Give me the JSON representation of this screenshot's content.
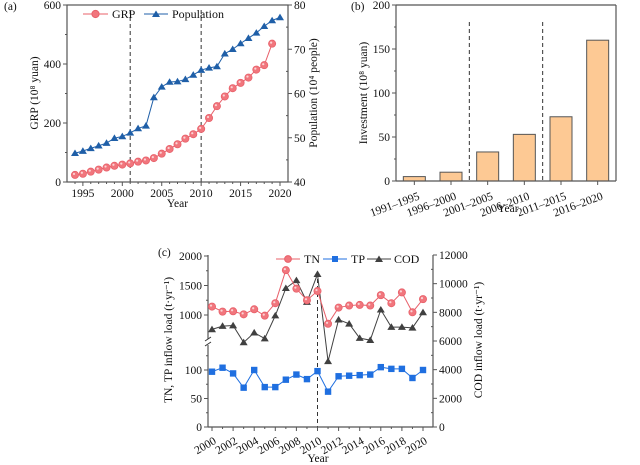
{
  "chart_data": [
    {
      "panel": "(a)",
      "type": "line",
      "xlabel": "Year",
      "ylabel": "GRP (10⁸ yuan)",
      "y2label": "Population (10⁴ people)",
      "xlim": [
        1993.2,
        2021
      ],
      "ylim": [
        0,
        600
      ],
      "y2lim": [
        40,
        80
      ],
      "xticks": [
        1995,
        2000,
        2005,
        2010,
        2015,
        2020
      ],
      "yticks": [
        0,
        200,
        400,
        600
      ],
      "y2ticks": [
        40,
        50,
        60,
        70,
        80
      ],
      "vlines": [
        2001,
        2010
      ],
      "legend": "top",
      "series": [
        {
          "name": "GRP",
          "axis": "left",
          "color": "#e8606a",
          "marker": "circle",
          "x": [
            1994,
            1995,
            1996,
            1997,
            1998,
            1999,
            2000,
            2001,
            2002,
            2003,
            2004,
            2005,
            2006,
            2007,
            2008,
            2009,
            2010,
            2011,
            2012,
            2013,
            2014,
            2015,
            2016,
            2017,
            2018,
            2019
          ],
          "values": [
            24,
            28,
            35,
            42,
            49,
            55,
            59,
            63,
            69,
            73,
            81,
            96,
            112,
            128,
            147,
            162,
            180,
            217,
            257,
            290,
            318,
            336,
            354,
            381,
            396,
            469
          ]
        },
        {
          "name": "Population",
          "axis": "right",
          "color": "#1f5fa8",
          "marker": "triangle",
          "x": [
            1994,
            1995,
            1996,
            1997,
            1998,
            1999,
            2000,
            2001,
            2002,
            2003,
            2004,
            2005,
            2006,
            2007,
            2008,
            2009,
            2010,
            2011,
            2012,
            2013,
            2014,
            2015,
            2016,
            2017,
            2018,
            2019,
            2020
          ],
          "values": [
            46.5,
            47.0,
            47.6,
            48.2,
            48.8,
            49.9,
            50.3,
            51.1,
            52.1,
            52.7,
            59.1,
            61.5,
            62.6,
            62.7,
            63.2,
            64.2,
            65.3,
            65.8,
            66.1,
            69.0,
            70.0,
            71.3,
            72.5,
            73.7,
            75.2,
            76.5,
            77.2
          ]
        }
      ]
    },
    {
      "panel": "(b)",
      "type": "bar",
      "xlabel": "Year",
      "ylabel": "Investment (10⁸ yuan)",
      "categories": [
        "1991–1995",
        "1996–2000",
        "2001–2005",
        "2006–2010",
        "2011–2015",
        "2016–2020"
      ],
      "values": [
        5,
        10,
        33,
        53,
        73,
        160
      ],
      "ylim": [
        0,
        200
      ],
      "yticks": [
        0,
        50,
        100,
        150,
        200
      ],
      "bar_color": "#fdc994",
      "vlines_between": [
        [
          1,
          2
        ],
        [
          3,
          4
        ]
      ]
    },
    {
      "panel": "(c)",
      "type": "line",
      "xlabel": "Year",
      "ylabel": "TN, TP inflow load (t·yr⁻¹)",
      "y2label": "COD inflow load (t·yr⁻¹)",
      "xlim": [
        1999.6,
        2020.5
      ],
      "ylim_lower": [
        0,
        150
      ],
      "ylim_upper": [
        700,
        2000
      ],
      "axis_break": true,
      "yticks": [
        0,
        50,
        100,
        1000,
        1500,
        2000
      ],
      "y2lim": [
        0,
        12000
      ],
      "y2ticks": [
        0,
        2000,
        4000,
        6000,
        8000,
        10000,
        12000
      ],
      "xticks": [
        2000,
        2002,
        2004,
        2006,
        2008,
        2010,
        2012,
        2014,
        2016,
        2018,
        2020
      ],
      "vlines": [
        2010
      ],
      "legend": "top-right",
      "series": [
        {
          "name": "TN",
          "axis": "left",
          "color": "#e8606a",
          "marker": "circle",
          "x": [
            2000,
            2001,
            2002,
            2003,
            2004,
            2005,
            2006,
            2007,
            2008,
            2009,
            2010,
            2011,
            2012,
            2013,
            2014,
            2015,
            2016,
            2017,
            2018,
            2019,
            2020
          ],
          "values": [
            1143,
            1057,
            1063,
            1011,
            1097,
            989,
            1200,
            1760,
            1446,
            1251,
            1406,
            851,
            1126,
            1160,
            1171,
            1160,
            1337,
            1200,
            1383,
            1046,
            1269
          ]
        },
        {
          "name": "TP",
          "axis": "left",
          "color": "#1f6fe0",
          "marker": "square",
          "x": [
            2000,
            2001,
            2002,
            2003,
            2004,
            2005,
            2006,
            2007,
            2008,
            2009,
            2010,
            2011,
            2012,
            2013,
            2014,
            2015,
            2016,
            2017,
            2018,
            2019,
            2020
          ],
          "values": [
            97,
            104,
            94,
            69,
            100,
            70,
            70,
            83,
            92,
            84,
            98,
            62,
            89,
            90,
            91,
            92,
            105,
            102,
            102,
            86,
            100
          ]
        },
        {
          "name": "COD",
          "axis": "right",
          "color": "#404040",
          "marker": "triangle",
          "x": [
            2000,
            2001,
            2002,
            2003,
            2004,
            2005,
            2006,
            2007,
            2008,
            2009,
            2010,
            2011,
            2012,
            2013,
            2014,
            2015,
            2016,
            2017,
            2018,
            2019,
            2020
          ],
          "values": [
            6810,
            7040,
            7080,
            5900,
            6580,
            6170,
            7770,
            9680,
            10230,
            8720,
            10660,
            4580,
            7490,
            7200,
            6200,
            6060,
            8180,
            6970,
            6970,
            6920,
            7990
          ]
        }
      ]
    }
  ]
}
